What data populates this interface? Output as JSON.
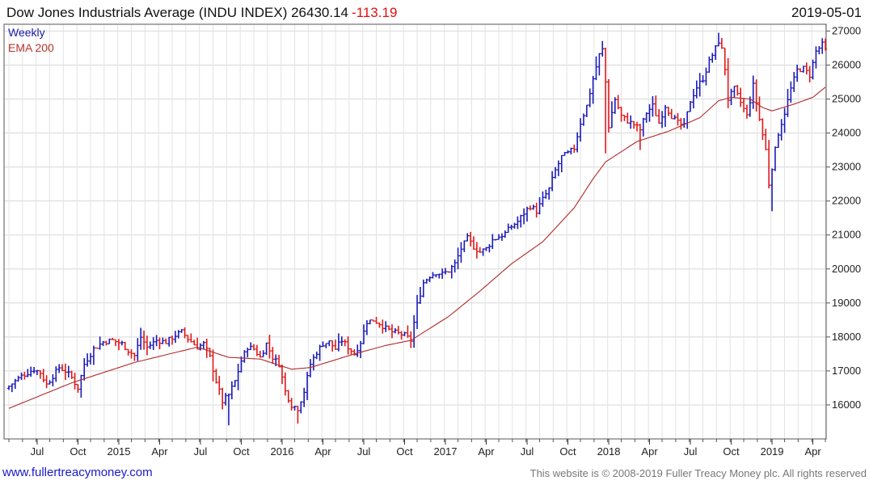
{
  "header": {
    "title": "Dow Jones Industrials Average (INDU INDEX) 26430.14",
    "change": "-113.19",
    "date": "2019-05-01"
  },
  "legend": {
    "weekly": "Weekly",
    "ema": "EMA 200"
  },
  "footer": {
    "link": "www.fullertreacymoney.com",
    "copyright": "This website is © 2008-2019 Fuller Treacy Money plc. All rights reserved"
  },
  "colors": {
    "up": "#1a1ab8",
    "down": "#e01818",
    "ema": "#b02a2a",
    "grid": "#d8d8d8"
  },
  "chart_data": {
    "type": "line",
    "x_unit": "week",
    "ylim": [
      15000,
      27200
    ],
    "y_ticks": [
      16000,
      17000,
      18000,
      19000,
      20000,
      21000,
      22000,
      23000,
      24000,
      25000,
      26000,
      27000
    ],
    "x_tick_labels": [
      "Jul",
      "Oct",
      "2015",
      "Apr",
      "Jul",
      "Oct",
      "2016",
      "Apr",
      "Jul",
      "Oct",
      "2017",
      "Apr",
      "Jul",
      "Oct",
      "2018",
      "Apr",
      "Jul",
      "Oct",
      "2019",
      "Apr"
    ],
    "x_tick_week": [
      9,
      22,
      35,
      48,
      61,
      74,
      87,
      100,
      113,
      126,
      139,
      152,
      165,
      178,
      191,
      204,
      217,
      230,
      243,
      256
    ],
    "grid": true,
    "weekly_close_anchors": [
      [
        0,
        16550
      ],
      [
        4,
        16850
      ],
      [
        8,
        17050
      ],
      [
        10,
        16950
      ],
      [
        12,
        16600
      ],
      [
        14,
        16850
      ],
      [
        16,
        17100
      ],
      [
        18,
        17000
      ],
      [
        20,
        16800
      ],
      [
        22,
        16500
      ],
      [
        24,
        17200
      ],
      [
        27,
        17650
      ],
      [
        30,
        17850
      ],
      [
        33,
        17900
      ],
      [
        36,
        17800
      ],
      [
        38,
        17600
      ],
      [
        40,
        17450
      ],
      [
        42,
        18000
      ],
      [
        44,
        17700
      ],
      [
        47,
        17900
      ],
      [
        50,
        17850
      ],
      [
        53,
        18050
      ],
      [
        55,
        18150
      ],
      [
        57,
        17950
      ],
      [
        60,
        17700
      ],
      [
        62,
        17800
      ],
      [
        64,
        17400
      ],
      [
        66,
        16700
      ],
      [
        68,
        16100
      ],
      [
        70,
        16300
      ],
      [
        72,
        16700
      ],
      [
        74,
        17300
      ],
      [
        76,
        17700
      ],
      [
        78,
        17650
      ],
      [
        80,
        17400
      ],
      [
        82,
        17800
      ],
      [
        84,
        17400
      ],
      [
        86,
        17200
      ],
      [
        88,
        16400
      ],
      [
        90,
        16000
      ],
      [
        92,
        15900
      ],
      [
        94,
        16400
      ],
      [
        96,
        17200
      ],
      [
        98,
        17550
      ],
      [
        100,
        17800
      ],
      [
        102,
        17850
      ],
      [
        104,
        17650
      ],
      [
        106,
        17900
      ],
      [
        108,
        17700
      ],
      [
        110,
        17500
      ],
      [
        112,
        17850
      ],
      [
        114,
        18450
      ],
      [
        116,
        18500
      ],
      [
        118,
        18400
      ],
      [
        120,
        18250
      ],
      [
        122,
        18150
      ],
      [
        124,
        18100
      ],
      [
        126,
        18050
      ],
      [
        128,
        17900
      ],
      [
        130,
        18950
      ],
      [
        132,
        19600
      ],
      [
        134,
        19800
      ],
      [
        136,
        19900
      ],
      [
        138,
        19850
      ],
      [
        140,
        19950
      ],
      [
        142,
        20150
      ],
      [
        144,
        20600
      ],
      [
        146,
        20900
      ],
      [
        148,
        20650
      ],
      [
        150,
        20500
      ],
      [
        152,
        20600
      ],
      [
        154,
        20850
      ],
      [
        156,
        20950
      ],
      [
        158,
        21050
      ],
      [
        160,
        21250
      ],
      [
        162,
        21400
      ],
      [
        164,
        21650
      ],
      [
        166,
        21850
      ],
      [
        168,
        21700
      ],
      [
        170,
        22050
      ],
      [
        172,
        22350
      ],
      [
        174,
        22900
      ],
      [
        176,
        23300
      ],
      [
        178,
        23400
      ],
      [
        180,
        23550
      ],
      [
        182,
        24300
      ],
      [
        184,
        24800
      ],
      [
        186,
        25600
      ],
      [
        188,
        26300
      ],
      [
        189,
        26450
      ],
      [
        190,
        25500
      ],
      [
        191,
        24200
      ],
      [
        193,
        25000
      ],
      [
        195,
        24500
      ],
      [
        197,
        24350
      ],
      [
        199,
        24250
      ],
      [
        201,
        24100
      ],
      [
        203,
        24600
      ],
      [
        205,
        24800
      ],
      [
        207,
        24300
      ],
      [
        209,
        24800
      ],
      [
        211,
        24500
      ],
      [
        213,
        24300
      ],
      [
        215,
        24200
      ],
      [
        217,
        24950
      ],
      [
        219,
        25350
      ],
      [
        221,
        25600
      ],
      [
        223,
        26100
      ],
      [
        225,
        26500
      ],
      [
        226,
        26700
      ],
      [
        227,
        26450
      ],
      [
        228,
        25900
      ],
      [
        229,
        25000
      ],
      [
        231,
        25300
      ],
      [
        233,
        24900
      ],
      [
        235,
        24500
      ],
      [
        237,
        25400
      ],
      [
        239,
        24400
      ],
      [
        241,
        23500
      ],
      [
        242,
        22500
      ],
      [
        243,
        23000
      ],
      [
        245,
        24000
      ],
      [
        247,
        24600
      ],
      [
        249,
        25300
      ],
      [
        251,
        25850
      ],
      [
        253,
        25900
      ],
      [
        255,
        25700
      ],
      [
        257,
        26400
      ],
      [
        259,
        26600
      ],
      [
        260,
        26430
      ]
    ],
    "ema_anchors": [
      [
        0,
        15900
      ],
      [
        20,
        16650
      ],
      [
        40,
        17250
      ],
      [
        60,
        17700
      ],
      [
        70,
        17400
      ],
      [
        80,
        17350
      ],
      [
        90,
        17050
      ],
      [
        96,
        17100
      ],
      [
        110,
        17500
      ],
      [
        120,
        17750
      ],
      [
        128,
        17900
      ],
      [
        140,
        18600
      ],
      [
        150,
        19350
      ],
      [
        160,
        20150
      ],
      [
        170,
        20800
      ],
      [
        180,
        21800
      ],
      [
        186,
        22650
      ],
      [
        190,
        23150
      ],
      [
        200,
        23750
      ],
      [
        210,
        24050
      ],
      [
        220,
        24450
      ],
      [
        226,
        24950
      ],
      [
        230,
        25050
      ],
      [
        236,
        25000
      ],
      [
        240,
        24750
      ],
      [
        243,
        24650
      ],
      [
        250,
        24850
      ],
      [
        256,
        25050
      ],
      [
        260,
        25350
      ]
    ],
    "high_spikes": [
      [
        226,
        26950
      ],
      [
        189,
        26600
      ]
    ],
    "low_spikes": [
      [
        70,
        15400
      ],
      [
        92,
        15450
      ],
      [
        243,
        21700
      ],
      [
        190,
        23400
      ],
      [
        201,
        23500
      ]
    ]
  }
}
